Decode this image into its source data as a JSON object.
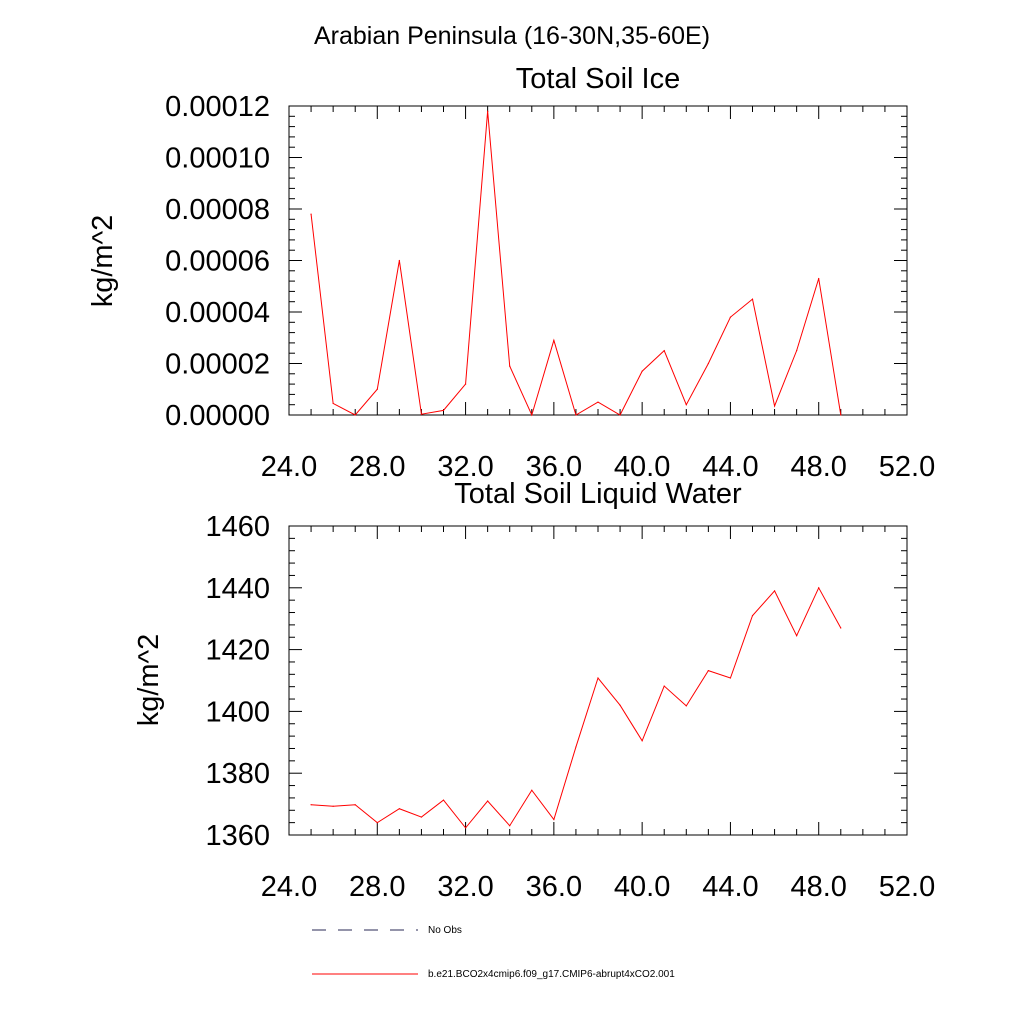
{
  "suptitle": "Arabian Peninsula (16-30N,35-60E)",
  "series_color": "#ff0000",
  "obs_color": "#2a2a55",
  "chart_data": [
    {
      "type": "line",
      "title": "Total Soil Ice",
      "ylabel": "kg/m^2",
      "xlabel": "",
      "xlim": [
        24,
        52
      ],
      "ylim": [
        0,
        0.00012
      ],
      "xticks": [
        "24.0",
        "28.0",
        "32.0",
        "36.0",
        "40.0",
        "44.0",
        "48.0",
        "52.0"
      ],
      "yticks": [
        "0.00000",
        "0.00002",
        "0.00004",
        "0.00006",
        "0.00008",
        "0.00010",
        "0.00012"
      ],
      "series": [
        {
          "name": "b.e21.BCO2x4cmip6.f09_g17.CMIP6-abrupt4xCO2.001",
          "x": [
            25,
            26,
            27,
            28,
            29,
            30,
            31,
            32,
            33,
            34,
            35,
            36,
            37,
            38,
            39,
            40,
            41,
            42,
            43,
            44,
            45,
            46,
            47,
            48,
            49
          ],
          "values": [
            7.8e-05,
            4.5e-06,
            0.0,
            1e-05,
            6e-05,
            3e-07,
            1.8e-06,
            1.2e-05,
            0.000118,
            1.9e-05,
            0.0,
            2.9e-05,
            0.0,
            5e-06,
            0.0,
            1.7e-05,
            2.5e-05,
            4e-06,
            2e-05,
            3.8e-05,
            4.5e-05,
            3.5e-06,
            2.5e-05,
            5.3e-05,
            0.0
          ]
        }
      ]
    },
    {
      "type": "line",
      "title": "Total Soil Liquid Water",
      "ylabel": "kg/m^2",
      "xlabel": "",
      "xlim": [
        24,
        52
      ],
      "ylim": [
        1360,
        1460
      ],
      "xticks": [
        "24.0",
        "28.0",
        "32.0",
        "36.0",
        "40.0",
        "44.0",
        "48.0",
        "52.0"
      ],
      "yticks": [
        "1360",
        "1380",
        "1400",
        "1420",
        "1440",
        "1460"
      ],
      "series": [
        {
          "name": "b.e21.BCO2x4cmip6.f09_g17.CMIP6-abrupt4xCO2.001",
          "x": [
            25,
            26,
            27,
            28,
            29,
            30,
            31,
            32,
            33,
            34,
            35,
            36,
            37,
            38,
            39,
            40,
            41,
            42,
            43,
            44,
            45,
            46,
            47,
            48,
            49
          ],
          "values": [
            1369.8,
            1369.3,
            1369.8,
            1364,
            1368.5,
            1365.8,
            1371.3,
            1362.3,
            1371,
            1363,
            1374.5,
            1365,
            1388.5,
            1410.8,
            1402,
            1390.5,
            1408.2,
            1401.8,
            1413.2,
            1410.8,
            1431,
            1439,
            1424.5,
            1440,
            1427
          ]
        }
      ]
    }
  ],
  "legend": [
    {
      "label": "No Obs",
      "style": "dashed"
    },
    {
      "label": "b.e21.BCO2x4cmip6.f09_g17.CMIP6-abrupt4xCO2.001",
      "style": "solid"
    }
  ]
}
